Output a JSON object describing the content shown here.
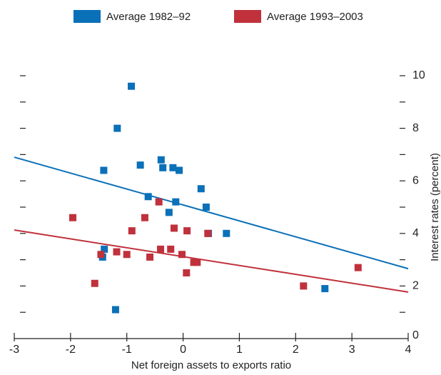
{
  "chart_data": {
    "type": "scatter",
    "xlabel": "Net foreign assets to exports ratio",
    "ylabel": "Interest rates (percent)",
    "xlim": [
      -3,
      4
    ],
    "xticks": [
      -3,
      -2,
      -1,
      0,
      1,
      2,
      3,
      4
    ],
    "ylim": [
      0,
      10.4
    ],
    "yticks": [
      0,
      2,
      4,
      6,
      8,
      10
    ],
    "yminorticks": [
      1,
      3,
      5,
      7,
      9
    ],
    "series": [
      {
        "name": "Average 1982–92",
        "color": "#0a70b8",
        "x": [
          -0.92,
          -1.17,
          -1.41,
          -0.76,
          -0.39,
          -0.36,
          -0.18,
          -0.07,
          -0.62,
          -0.13,
          -0.25,
          0.32,
          0.41,
          0.45,
          0.77,
          -1.4,
          -1.43,
          -1.2,
          2.52
        ],
        "values": [
          9.6,
          8.0,
          6.4,
          6.6,
          6.8,
          6.5,
          6.5,
          6.4,
          5.4,
          5.2,
          4.8,
          5.7,
          5.0,
          4.0,
          4.0,
          3.4,
          3.1,
          1.1,
          1.9
        ],
        "trendline": {
          "x": [
            -3,
            4
          ],
          "y": [
            6.9,
            2.66
          ]
        }
      },
      {
        "name": "Average 1993–2003",
        "color": "#c0313c",
        "x": [
          -1.96,
          -1.57,
          -1.46,
          -1.18,
          -1.0,
          -0.91,
          -0.59,
          -0.68,
          -0.43,
          -0.4,
          -0.22,
          -0.16,
          -0.02,
          0.07,
          0.06,
          0.19,
          0.25,
          0.44,
          2.14,
          3.11
        ],
        "values": [
          4.6,
          2.1,
          3.2,
          3.3,
          3.2,
          4.1,
          3.1,
          4.6,
          5.2,
          3.4,
          3.4,
          4.2,
          3.2,
          4.1,
          2.5,
          2.9,
          2.9,
          4.0,
          2.0,
          2.7
        ],
        "trendline": {
          "x": [
            -3,
            4
          ],
          "y": [
            4.13,
            1.77
          ]
        }
      }
    ]
  }
}
